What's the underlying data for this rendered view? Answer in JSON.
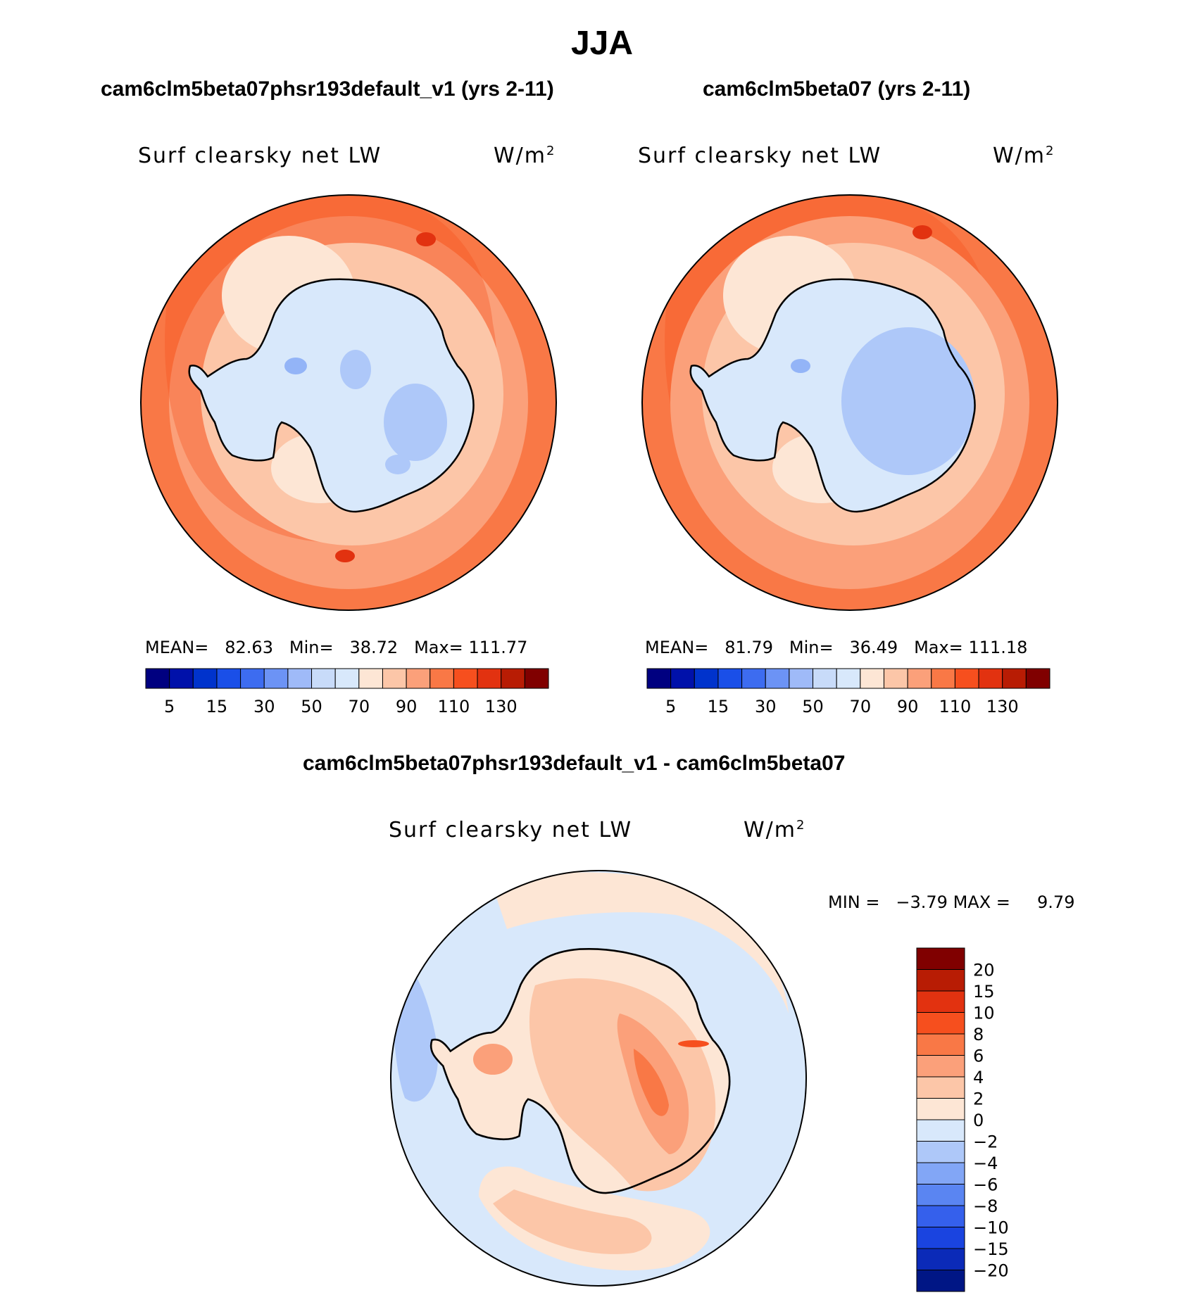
{
  "figure_title": "JJA",
  "panels": [
    {
      "case_title": "cam6clm5beta07phsr193default_v1 (yrs 2-11)",
      "variable": "Surf clearsky net LW",
      "units": "W/m",
      "units_sup": "2",
      "stats": {
        "mean_label": "MEAN=",
        "mean": "82.63",
        "min_label": "Min=",
        "min": "38.72",
        "max_label": "Max=",
        "max": "111.77"
      }
    },
    {
      "case_title": "cam6clm5beta07 (yrs 2-11)",
      "variable": "Surf clearsky net LW",
      "units": "W/m",
      "units_sup": "2",
      "stats": {
        "mean_label": "MEAN=",
        "mean": "81.79",
        "min_label": "Min=",
        "min": "36.49",
        "max_label": "Max=",
        "max": "111.18"
      }
    },
    {
      "case_title": "cam6clm5beta07phsr193default_v1 - cam6clm5beta07",
      "variable": "Surf clearsky net LW",
      "units": "W/m",
      "units_sup": "2",
      "stats": {
        "min_label": "MIN =",
        "min": "−3.79",
        "max_label": "MAX =",
        "max": "9.79"
      }
    }
  ],
  "chart_data": [
    {
      "type": "heatmap",
      "projection": "south-polar-stereographic",
      "title": "cam6clm5beta07phsr193default_v1 (yrs 2-11)",
      "variable": "Surf clearsky net LW",
      "units": "W/m2",
      "mean": 82.63,
      "min": 38.72,
      "max": 111.77,
      "colorbar": {
        "orientation": "horizontal",
        "levels": [
          5,
          10,
          15,
          20,
          30,
          40,
          50,
          60,
          70,
          80,
          90,
          100,
          110,
          120,
          130
        ],
        "tick_labels": [
          "5",
          "15",
          "30",
          "50",
          "70",
          "90",
          "110",
          "130"
        ],
        "colors": [
          "#000080",
          "#0011aa",
          "#0033cc",
          "#1a4fe8",
          "#3d6cf0",
          "#6c93f5",
          "#9fbaf8",
          "#c8dbf9",
          "#d8e8fb",
          "#fde6d5",
          "#fcc6a8",
          "#fba07a",
          "#f97846",
          "#f64f1e",
          "#e23210",
          "#b81c04",
          "#800000"
        ]
      }
    },
    {
      "type": "heatmap",
      "projection": "south-polar-stereographic",
      "title": "cam6clm5beta07 (yrs 2-11)",
      "variable": "Surf clearsky net LW",
      "units": "W/m2",
      "mean": 81.79,
      "min": 36.49,
      "max": 111.18,
      "colorbar": {
        "orientation": "horizontal",
        "levels": [
          5,
          10,
          15,
          20,
          30,
          40,
          50,
          60,
          70,
          80,
          90,
          100,
          110,
          120,
          130
        ],
        "tick_labels": [
          "5",
          "15",
          "30",
          "50",
          "70",
          "90",
          "110",
          "130"
        ],
        "colors": [
          "#000080",
          "#0011aa",
          "#0033cc",
          "#1a4fe8",
          "#3d6cf0",
          "#6c93f5",
          "#9fbaf8",
          "#c8dbf9",
          "#d8e8fb",
          "#fde6d5",
          "#fcc6a8",
          "#fba07a",
          "#f97846",
          "#f64f1e",
          "#e23210",
          "#b81c04",
          "#800000"
        ]
      }
    },
    {
      "type": "heatmap",
      "projection": "south-polar-stereographic",
      "title": "cam6clm5beta07phsr193default_v1 - cam6clm5beta07",
      "variable": "Surf clearsky net LW",
      "units": "W/m2",
      "min": -3.79,
      "max": 9.79,
      "colorbar": {
        "orientation": "vertical",
        "levels": [
          20,
          15,
          10,
          8,
          6,
          4,
          2,
          0,
          -2,
          -4,
          -6,
          -8,
          -10,
          -15,
          -20
        ],
        "tick_labels": [
          "20",
          "15",
          "10",
          "8",
          "6",
          "4",
          "2",
          "0",
          "−2",
          "−4",
          "−6",
          "−8",
          "−10",
          "−15",
          "−20"
        ],
        "colors": [
          "#800000",
          "#b81c04",
          "#e23210",
          "#f64f1e",
          "#f97846",
          "#fba07a",
          "#fcc6a8",
          "#fde6d5",
          "#d8e8fb",
          "#aec8f9",
          "#82a6f6",
          "#5a85f2",
          "#3560ec",
          "#1a44e0",
          "#0b2ab8",
          "#001685"
        ]
      }
    }
  ]
}
